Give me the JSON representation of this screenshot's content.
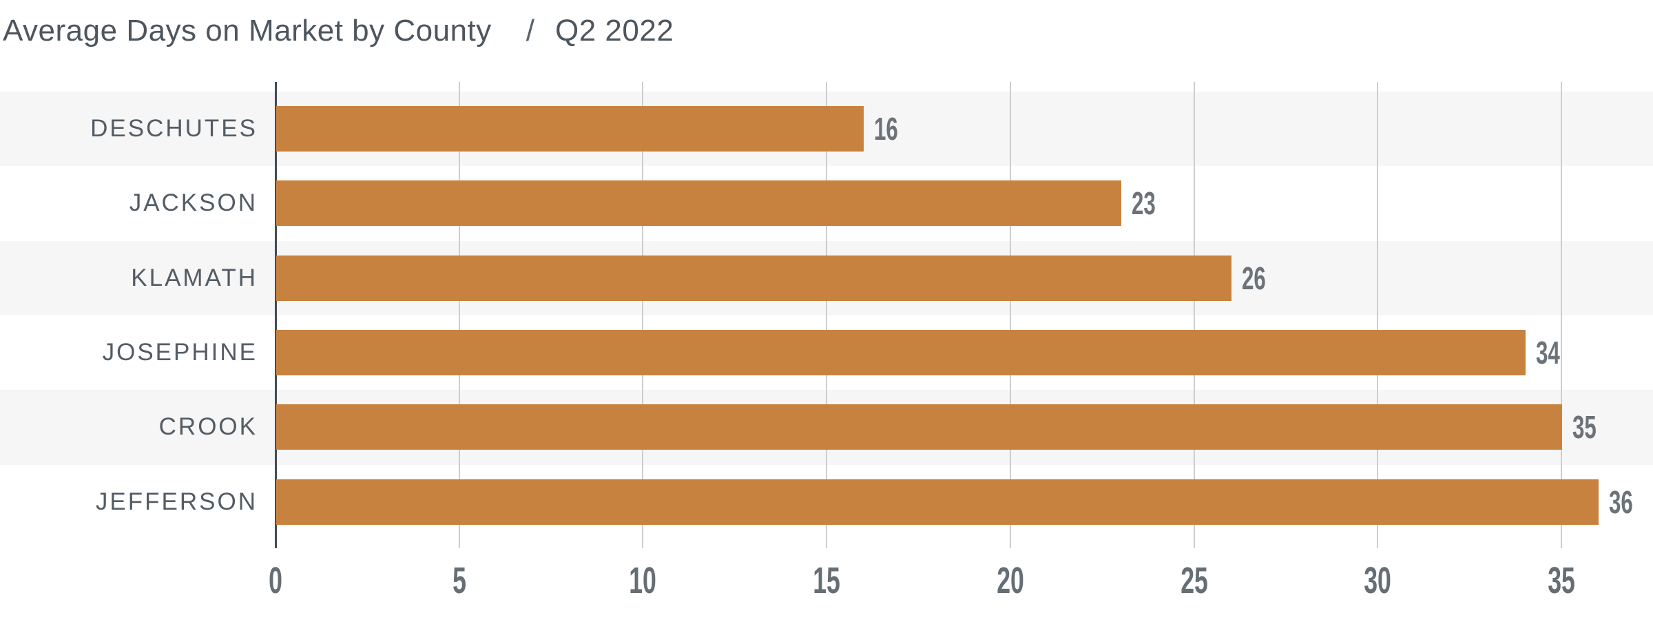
{
  "title": {
    "main": "Average Days on Market by County",
    "separator": "/",
    "period": "Q2 2022"
  },
  "chart_data": {
    "type": "bar",
    "orientation": "horizontal",
    "title": "Average Days on Market by County",
    "subtitle": "Q2 2022",
    "categories": [
      "DESCHUTES",
      "JACKSON",
      "KLAMATH",
      "JOSEPHINE",
      "CROOK",
      "JEFFERSON"
    ],
    "values": [
      16,
      23,
      26,
      34,
      35,
      36
    ],
    "value_labels": [
      "16",
      "23",
      "26",
      "34",
      "35",
      "36"
    ],
    "xlabel": "",
    "ylabel": "",
    "xlim": [
      0,
      37.5
    ],
    "xticks": [
      0,
      5,
      10,
      15,
      20,
      25,
      30,
      35
    ],
    "xtick_labels": [
      "0",
      "5",
      "10",
      "15",
      "20",
      "25",
      "30",
      "35"
    ],
    "grid": "vertical-only",
    "legend": "none",
    "row_striping": "alternating, first row shaded"
  },
  "colors": {
    "bar": "#C8823F",
    "row_stripe": "#F6F6F6",
    "gridline": "#CBCED0",
    "axis_line": "#424C54",
    "title_text": "#4D565E",
    "separator_text": "#5B646B",
    "category_text": "#535C64",
    "value_text": "#6B7278",
    "tick_text": "#656E74",
    "background": "#FFFFFF"
  }
}
